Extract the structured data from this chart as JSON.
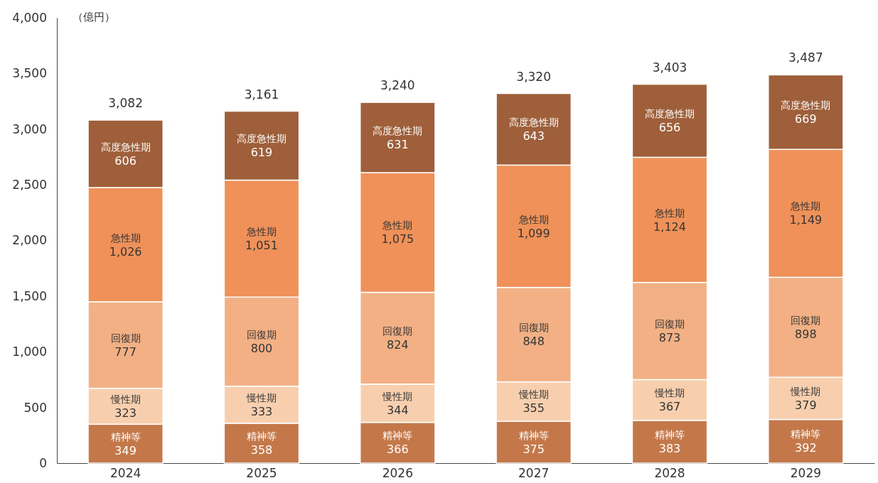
{
  "chart_data": {
    "type": "bar",
    "stacked": true,
    "ylabel": "（億円）",
    "categories": [
      "2024",
      "2025",
      "2026",
      "2027",
      "2028",
      "2029"
    ],
    "series": [
      {
        "name": "精神等",
        "color": "#c4784a",
        "values": [
          349,
          358,
          366,
          375,
          383,
          392
        ],
        "value_labels": [
          "349",
          "358",
          "366",
          "375",
          "383",
          "392"
        ]
      },
      {
        "name": "慢性期",
        "color": "#f8cfae",
        "values": [
          323,
          333,
          344,
          355,
          367,
          379
        ],
        "value_labels": [
          "323",
          "333",
          "344",
          "355",
          "367",
          "379"
        ]
      },
      {
        "name": "回復期",
        "color": "#f2b084",
        "values": [
          777,
          800,
          824,
          848,
          873,
          898
        ],
        "value_labels": [
          "777",
          "800",
          "824",
          "848",
          "873",
          "898"
        ]
      },
      {
        "name": "急性期",
        "color": "#ef9159",
        "values": [
          1026,
          1051,
          1075,
          1099,
          1124,
          1149
        ],
        "value_labels": [
          "1,026",
          "1,051",
          "1,075",
          "1,099",
          "1,124",
          "1,149"
        ]
      },
      {
        "name": "高度急性期",
        "color": "#9e5f3a",
        "values": [
          606,
          619,
          631,
          643,
          656,
          669
        ],
        "value_labels": [
          "606",
          "619",
          "631",
          "643",
          "656",
          "669"
        ]
      }
    ],
    "totals": [
      "3,082",
      "3,161",
      "3,240",
      "3,320",
      "3,403",
      "3,487"
    ],
    "ylim": [
      0,
      4000
    ],
    "yticks": [
      {
        "value": 0,
        "label": "0"
      },
      {
        "value": 500,
        "label": "500"
      },
      {
        "value": 1000,
        "label": "1,000"
      },
      {
        "value": 1500,
        "label": "1,500"
      },
      {
        "value": 2000,
        "label": "2,000"
      },
      {
        "value": 2500,
        "label": "2,500"
      },
      {
        "value": 3000,
        "label": "3,000"
      },
      {
        "value": 3500,
        "label": "3,500"
      },
      {
        "value": 4000,
        "label": "4,000"
      }
    ],
    "grid": false
  }
}
